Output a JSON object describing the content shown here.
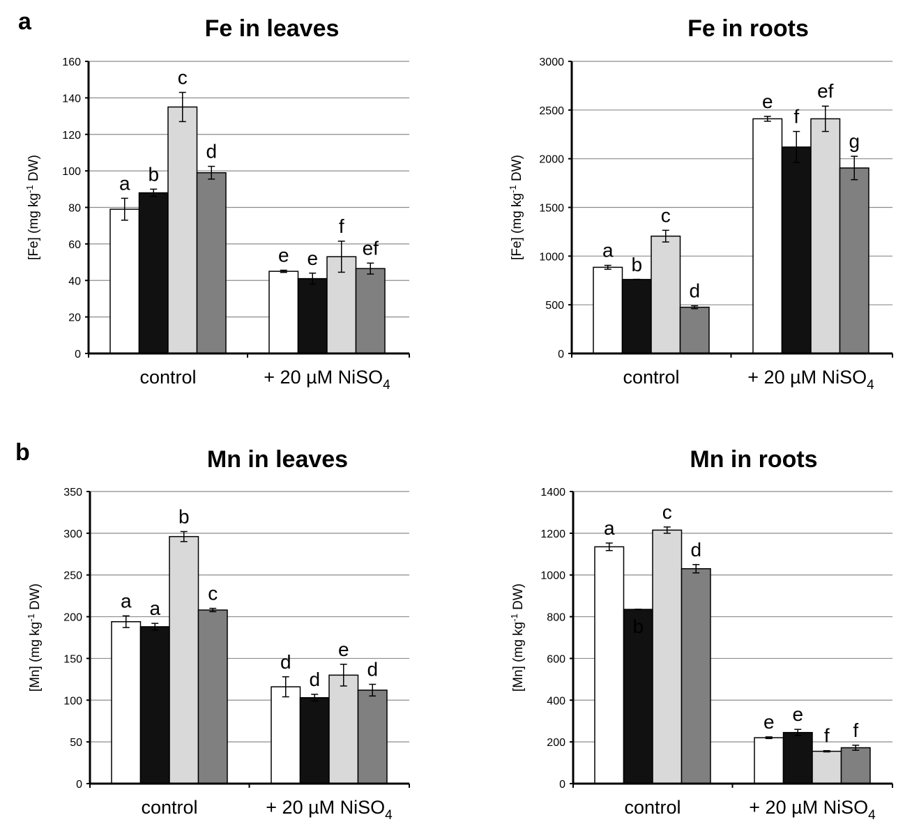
{
  "panels": {
    "a": "a",
    "b": "b"
  },
  "chart_data": [
    {
      "type": "bar",
      "title": "Fe in leaves",
      "ylabel": "[Fe] (mg kg-1 DW)",
      "ylabel_parts": [
        "[Fe] (mg kg",
        "-1",
        " DW)"
      ],
      "ylim": [
        0,
        160
      ],
      "yticks": [
        0,
        20,
        40,
        60,
        80,
        100,
        120,
        140,
        160
      ],
      "grid": true,
      "categories": [
        "control",
        "+ 20 µM NiSO4"
      ],
      "category_parts": [
        [
          "control"
        ],
        [
          "+ 20 µM NiSO",
          "4"
        ]
      ],
      "series": [
        {
          "name": "series 1",
          "color": "#ffffff",
          "values": [
            79,
            45
          ],
          "errors": [
            6,
            0.6
          ],
          "labels": [
            "a",
            "e"
          ]
        },
        {
          "name": "series 2",
          "color": "#111111",
          "values": [
            88,
            41
          ],
          "errors": [
            2,
            3
          ],
          "labels": [
            "b",
            "e"
          ]
        },
        {
          "name": "series 3",
          "color": "#d9d9d9",
          "values": [
            135,
            53
          ],
          "errors": [
            8,
            8.5
          ],
          "labels": [
            "c",
            "f"
          ]
        },
        {
          "name": "series 4",
          "color": "#808080",
          "values": [
            99,
            46.5
          ],
          "errors": [
            3.5,
            3
          ],
          "labels": [
            "d",
            "ef"
          ]
        }
      ]
    },
    {
      "type": "bar",
      "title": "Fe in roots",
      "ylabel": "[Fe] (mg kg-1 DW)",
      "ylabel_parts": [
        "[Fe] (mg kg",
        "-1",
        " DW)"
      ],
      "ylim": [
        0,
        3000
      ],
      "yticks": [
        0,
        500,
        1000,
        1500,
        2000,
        2500,
        3000
      ],
      "grid": true,
      "categories": [
        "control",
        "+ 20 µM NiSO4"
      ],
      "category_parts": [
        [
          "control"
        ],
        [
          "+ 20 µM NiSO",
          "4"
        ]
      ],
      "series": [
        {
          "name": "series 1",
          "color": "#ffffff",
          "values": [
            885,
            2410
          ],
          "errors": [
            20,
            25
          ],
          "labels": [
            "a",
            "e"
          ]
        },
        {
          "name": "series 2",
          "color": "#111111",
          "values": [
            760,
            2120
          ],
          "errors": [
            0,
            160
          ],
          "labels": [
            "b",
            "f"
          ]
        },
        {
          "name": "series 3",
          "color": "#d9d9d9",
          "values": [
            1205,
            2410
          ],
          "errors": [
            60,
            130
          ],
          "labels": [
            "c",
            "ef"
          ]
        },
        {
          "name": "series 4",
          "color": "#808080",
          "values": [
            475,
            1905
          ],
          "errors": [
            15,
            120
          ],
          "labels": [
            "d",
            "g"
          ]
        }
      ]
    },
    {
      "type": "bar",
      "title": "Mn in leaves",
      "ylabel": "[Mn] (mg kg-1 DW)",
      "ylabel_parts": [
        "[Mn] (mg kg",
        "-1",
        " DW)"
      ],
      "ylim": [
        0,
        350
      ],
      "yticks": [
        0,
        50,
        100,
        150,
        200,
        250,
        300,
        350
      ],
      "grid": true,
      "categories": [
        "control",
        "+ 20 µM NiSO4"
      ],
      "category_parts": [
        [
          "control"
        ],
        [
          "+ 20 µM NiSO",
          "4"
        ]
      ],
      "series": [
        {
          "name": "series 1",
          "color": "#ffffff",
          "values": [
            194,
            116
          ],
          "errors": [
            7,
            12
          ],
          "labels": [
            "a",
            "d"
          ]
        },
        {
          "name": "series 2",
          "color": "#111111",
          "values": [
            188,
            103
          ],
          "errors": [
            4,
            4
          ],
          "labels": [
            "a",
            "d"
          ]
        },
        {
          "name": "series 3",
          "color": "#d9d9d9",
          "values": [
            296,
            130
          ],
          "errors": [
            6,
            13
          ],
          "labels": [
            "b",
            "e"
          ]
        },
        {
          "name": "series 4",
          "color": "#808080",
          "values": [
            208,
            112
          ],
          "errors": [
            2,
            7
          ],
          "labels": [
            "c",
            "d"
          ]
        }
      ]
    },
    {
      "type": "bar",
      "title": "Mn in roots",
      "ylabel": "[Mn] (mg kg-1 DW)",
      "ylabel_parts": [
        "[Mn] (mg kg",
        "-1",
        " DW)"
      ],
      "ylim": [
        0,
        1400
      ],
      "yticks": [
        0,
        200,
        400,
        600,
        800,
        1000,
        1200,
        1400
      ],
      "grid": true,
      "categories": [
        "control",
        "+ 20 µM NiSO4"
      ],
      "category_parts": [
        [
          "control"
        ],
        [
          "+ 20 µM NiSO",
          "4"
        ]
      ],
      "series": [
        {
          "name": "series 1",
          "color": "#ffffff",
          "values": [
            1135,
            220
          ],
          "errors": [
            18,
            4
          ],
          "labels": [
            "a",
            "e"
          ]
        },
        {
          "name": "series 2",
          "color": "#111111",
          "values": [
            835,
            245
          ],
          "errors": [
            0,
            15
          ],
          "labels": [
            "b",
            "e"
          ]
        },
        {
          "name": "series 3",
          "color": "#d9d9d9",
          "values": [
            1215,
            155
          ],
          "errors": [
            15,
            3
          ],
          "labels": [
            "c",
            "f"
          ]
        },
        {
          "name": "series 4",
          "color": "#808080",
          "values": [
            1030,
            172
          ],
          "errors": [
            20,
            12
          ],
          "labels": [
            "d",
            "f"
          ]
        }
      ]
    }
  ]
}
